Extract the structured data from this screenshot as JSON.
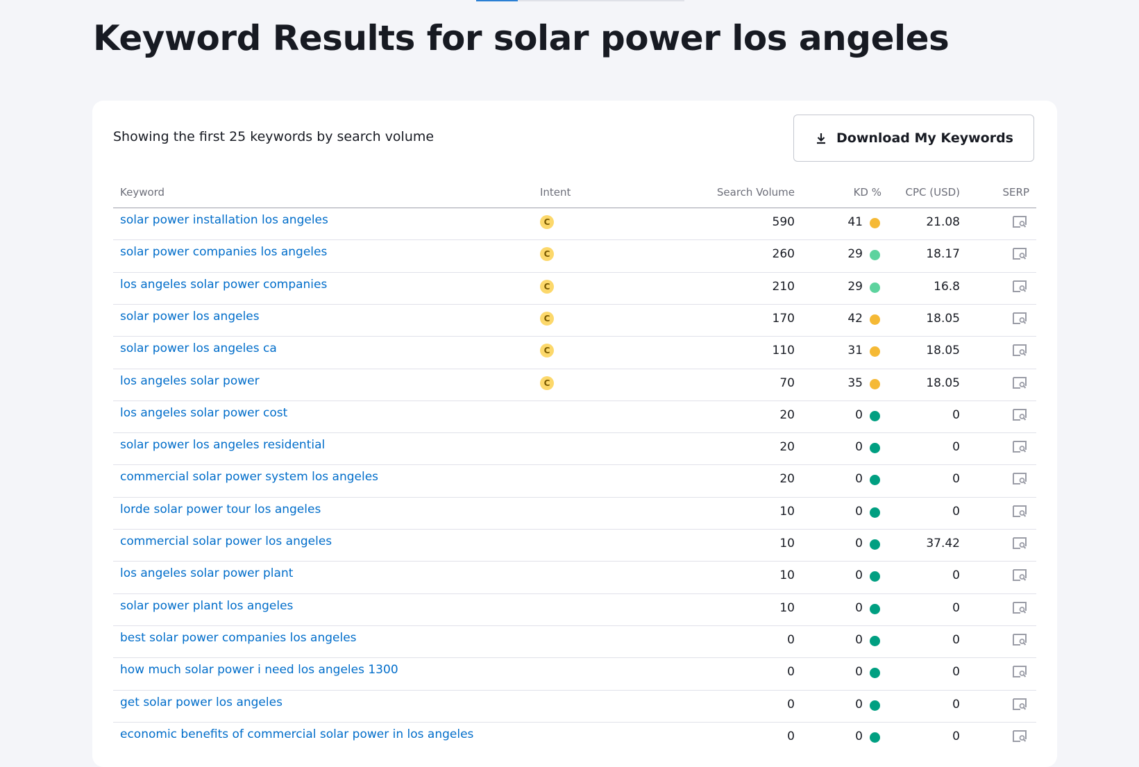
{
  "header": {
    "title": "Keyword Results for solar power los angeles"
  },
  "card": {
    "subtitle": "Showing the first 25 keywords by search volume",
    "button": "Download My Keywords"
  },
  "table": {
    "columns": [
      "Keyword",
      "Intent",
      "Search Volume",
      "KD %",
      "CPC (USD)",
      "SERP"
    ],
    "rows": [
      {
        "keyword": "solar power installation los angeles",
        "intent": "C",
        "volume": "590",
        "kd": "41",
        "kd_color": "#f5b935",
        "cpc": "21.08"
      },
      {
        "keyword": "solar power companies los angeles",
        "intent": "C",
        "volume": "260",
        "kd": "29",
        "kd_color": "#5dd39e",
        "cpc": "18.17"
      },
      {
        "keyword": "los angeles solar power companies",
        "intent": "C",
        "volume": "210",
        "kd": "29",
        "kd_color": "#5dd39e",
        "cpc": "16.8"
      },
      {
        "keyword": "solar power los angeles",
        "intent": "C",
        "volume": "170",
        "kd": "42",
        "kd_color": "#f5b935",
        "cpc": "18.05"
      },
      {
        "keyword": "solar power los angeles ca",
        "intent": "C",
        "volume": "110",
        "kd": "31",
        "kd_color": "#f5b935",
        "cpc": "18.05"
      },
      {
        "keyword": "los angeles solar power",
        "intent": "C",
        "volume": "70",
        "kd": "35",
        "kd_color": "#f5b935",
        "cpc": "18.05"
      },
      {
        "keyword": "los angeles solar power cost",
        "volume": "20",
        "kd": "0",
        "kd_color": "#009f81",
        "cpc": "0"
      },
      {
        "keyword": "solar power los angeles residential",
        "volume": "20",
        "kd": "0",
        "kd_color": "#009f81",
        "cpc": "0"
      },
      {
        "keyword": "commercial solar power system los angeles",
        "volume": "20",
        "kd": "0",
        "kd_color": "#009f81",
        "cpc": "0"
      },
      {
        "keyword": "lorde solar power tour los angeles",
        "volume": "10",
        "kd": "0",
        "kd_color": "#009f81",
        "cpc": "0"
      },
      {
        "keyword": "commercial solar power los angeles",
        "volume": "10",
        "kd": "0",
        "kd_color": "#009f81",
        "cpc": "37.42"
      },
      {
        "keyword": "los angeles solar power plant",
        "volume": "10",
        "kd": "0",
        "kd_color": "#009f81",
        "cpc": "0"
      },
      {
        "keyword": "solar power plant los angeles",
        "volume": "10",
        "kd": "0",
        "kd_color": "#009f81",
        "cpc": "0"
      },
      {
        "keyword": "best solar power companies los angeles",
        "volume": "0",
        "kd": "0",
        "kd_color": "#009f81",
        "cpc": "0"
      },
      {
        "keyword": "how much solar power i need los angeles 1300",
        "volume": "0",
        "kd": "0",
        "kd_color": "#009f81",
        "cpc": "0"
      },
      {
        "keyword": "get solar power los angeles",
        "volume": "0",
        "kd": "0",
        "kd_color": "#009f81",
        "cpc": "0"
      },
      {
        "keyword": "economic benefits of commercial solar power in los angeles",
        "volume": "0",
        "kd": "0",
        "kd_color": "#009f81",
        "cpc": "0"
      }
    ]
  }
}
